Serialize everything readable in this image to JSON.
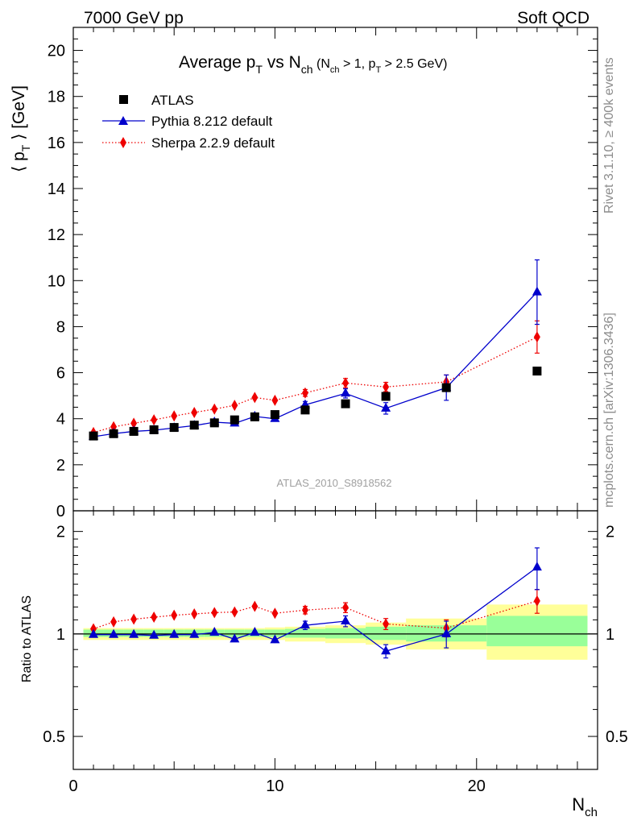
{
  "header": {
    "left": "7000 GeV pp",
    "right": "Soft QCD"
  },
  "plot_title": {
    "main": "Average p",
    "main_sub": "T",
    "vs": " vs N",
    "vs_sub": "ch",
    "cond_open": " (N",
    "cond_sub1": "ch",
    "cond_mid": " > 1, p",
    "cond_sub2": "T",
    "cond_close": " > 2.5 GeV)"
  },
  "side_text": {
    "rivet": "Rivet 3.1.10, ≥ 400k events",
    "mcplots": "mcplots.cern.ch [arXiv:1306.3436]"
  },
  "watermark": "ATLAS_2010_S8918562",
  "ratio_ylabel": "Ratio to ATLAS",
  "colors": {
    "atlas": "#000000",
    "pythia": "#0000cc",
    "sherpa": "#ee0000",
    "band_inner": "#99ff99",
    "band_outer": "#ffff99"
  },
  "chart_data": [
    {
      "type": "scatter",
      "panel": "main",
      "ylabel": "⟨ p_T ⟩ [GeV]",
      "ylabel_parts": {
        "open": "⟨ p",
        "sub": "T",
        "close": " ⟩  [GeV]"
      },
      "xlim": [
        0,
        26
      ],
      "ylim": [
        0,
        21
      ],
      "y_ticks": [
        0,
        2,
        4,
        6,
        8,
        10,
        12,
        14,
        16,
        18,
        20
      ],
      "legend_position": "top-left",
      "series": [
        {
          "name": "ATLAS",
          "marker": "square",
          "x": [
            1,
            2,
            3,
            4,
            5,
            6,
            7,
            8,
            9,
            10,
            11.5,
            13.5,
            15.5,
            18.5,
            23
          ],
          "y": [
            3.25,
            3.35,
            3.45,
            3.52,
            3.62,
            3.72,
            3.82,
            3.95,
            4.08,
            4.18,
            4.38,
            4.65,
            4.97,
            5.35,
            6.07
          ]
        },
        {
          "name": "Pythia 8.212 default",
          "marker": "triangle",
          "line": "solid",
          "x": [
            1,
            2,
            3,
            4,
            5,
            6,
            7,
            8,
            9,
            10,
            11.5,
            13.5,
            15.5,
            18.5,
            23
          ],
          "y": [
            3.22,
            3.35,
            3.45,
            3.5,
            3.6,
            3.7,
            3.85,
            3.8,
            4.1,
            4.0,
            4.6,
            5.1,
            4.45,
            5.35,
            9.5
          ],
          "err": [
            0.05,
            0.05,
            0.05,
            0.05,
            0.05,
            0.05,
            0.06,
            0.08,
            0.1,
            0.1,
            0.15,
            0.2,
            0.25,
            0.55,
            1.4
          ]
        },
        {
          "name": "Sherpa 2.2.9 default",
          "marker": "diamond",
          "line": "dotted",
          "x": [
            1,
            2,
            3,
            4,
            5,
            6,
            7,
            8,
            9,
            10,
            11.5,
            13.5,
            15.5,
            18.5,
            23
          ],
          "y": [
            3.4,
            3.65,
            3.8,
            3.95,
            4.12,
            4.27,
            4.42,
            4.58,
            4.92,
            4.8,
            5.12,
            5.55,
            5.38,
            5.6,
            7.55
          ],
          "err": [
            0.05,
            0.05,
            0.05,
            0.05,
            0.05,
            0.05,
            0.06,
            0.08,
            0.1,
            0.1,
            0.15,
            0.2,
            0.2,
            0.3,
            0.7
          ]
        }
      ]
    },
    {
      "type": "scatter",
      "panel": "ratio",
      "ylabel": "Ratio to ATLAS",
      "xlabel": "N_ch",
      "xlabel_parts": {
        "main": "N",
        "sub": "ch"
      },
      "xlim": [
        0,
        26
      ],
      "ylim": [
        0.4,
        2.3
      ],
      "y_scale": "log",
      "y_tick_labels": [
        "0.5",
        "1",
        "2"
      ],
      "y_ticks": [
        0.5,
        1,
        2
      ],
      "x_tick_labels": [
        "0",
        "10",
        "20"
      ],
      "x_ticks": [
        0,
        10,
        20
      ],
      "bands": [
        {
          "x0": 0.5,
          "x1": 1.5,
          "outer": [
            0.96,
            1.04
          ],
          "inner": [
            0.98,
            1.03
          ]
        },
        {
          "x0": 1.5,
          "x1": 2.5,
          "outer": [
            0.96,
            1.04
          ],
          "inner": [
            0.98,
            1.03
          ]
        },
        {
          "x0": 2.5,
          "x1": 3.5,
          "outer": [
            0.96,
            1.04
          ],
          "inner": [
            0.98,
            1.03
          ]
        },
        {
          "x0": 3.5,
          "x1": 4.5,
          "outer": [
            0.96,
            1.04
          ],
          "inner": [
            0.98,
            1.03
          ]
        },
        {
          "x0": 4.5,
          "x1": 5.5,
          "outer": [
            0.96,
            1.04
          ],
          "inner": [
            0.98,
            1.03
          ]
        },
        {
          "x0": 5.5,
          "x1": 6.5,
          "outer": [
            0.96,
            1.04
          ],
          "inner": [
            0.98,
            1.03
          ]
        },
        {
          "x0": 6.5,
          "x1": 7.5,
          "outer": [
            0.96,
            1.04
          ],
          "inner": [
            0.98,
            1.03
          ]
        },
        {
          "x0": 7.5,
          "x1": 8.5,
          "outer": [
            0.96,
            1.04
          ],
          "inner": [
            0.98,
            1.03
          ]
        },
        {
          "x0": 8.5,
          "x1": 9.5,
          "outer": [
            0.96,
            1.04
          ],
          "inner": [
            0.98,
            1.03
          ]
        },
        {
          "x0": 9.5,
          "x1": 10.5,
          "outer": [
            0.96,
            1.045
          ],
          "inner": [
            0.98,
            1.03
          ]
        },
        {
          "x0": 10.5,
          "x1": 12.5,
          "outer": [
            0.95,
            1.05
          ],
          "inner": [
            0.975,
            1.035
          ]
        },
        {
          "x0": 12.5,
          "x1": 14.5,
          "outer": [
            0.94,
            1.06
          ],
          "inner": [
            0.97,
            1.04
          ]
        },
        {
          "x0": 14.5,
          "x1": 16.5,
          "outer": [
            0.93,
            1.08
          ],
          "inner": [
            0.96,
            1.05
          ]
        },
        {
          "x0": 16.5,
          "x1": 20.5,
          "outer": [
            0.9,
            1.11
          ],
          "inner": [
            0.95,
            1.06
          ]
        },
        {
          "x0": 20.5,
          "x1": 25.5,
          "outer": [
            0.84,
            1.22
          ],
          "inner": [
            0.92,
            1.13
          ]
        }
      ],
      "series": [
        {
          "name": "Pythia 8.212 default",
          "marker": "triangle",
          "x": [
            1,
            2,
            3,
            4,
            5,
            6,
            7,
            8,
            9,
            10,
            11.5,
            13.5,
            15.5,
            18.5,
            23
          ],
          "y": [
            0.995,
            0.995,
            0.995,
            0.99,
            0.995,
            0.995,
            1.01,
            0.965,
            1.01,
            0.96,
            1.06,
            1.09,
            0.89,
            1.0,
            1.57
          ],
          "err": [
            0.01,
            0.01,
            0.01,
            0.01,
            0.01,
            0.01,
            0.012,
            0.015,
            0.02,
            0.02,
            0.03,
            0.04,
            0.04,
            0.09,
            0.22
          ]
        },
        {
          "name": "Sherpa 2.2.9 default",
          "marker": "diamond",
          "x": [
            1,
            2,
            3,
            4,
            5,
            6,
            7,
            8,
            9,
            10,
            11.5,
            13.5,
            15.5,
            18.5,
            23
          ],
          "y": [
            1.035,
            1.085,
            1.105,
            1.12,
            1.135,
            1.145,
            1.155,
            1.16,
            1.205,
            1.15,
            1.175,
            1.195,
            1.07,
            1.04,
            1.25
          ],
          "err": [
            0.01,
            0.01,
            0.01,
            0.01,
            0.01,
            0.01,
            0.012,
            0.015,
            0.02,
            0.02,
            0.03,
            0.04,
            0.04,
            0.06,
            0.1
          ]
        }
      ]
    }
  ]
}
